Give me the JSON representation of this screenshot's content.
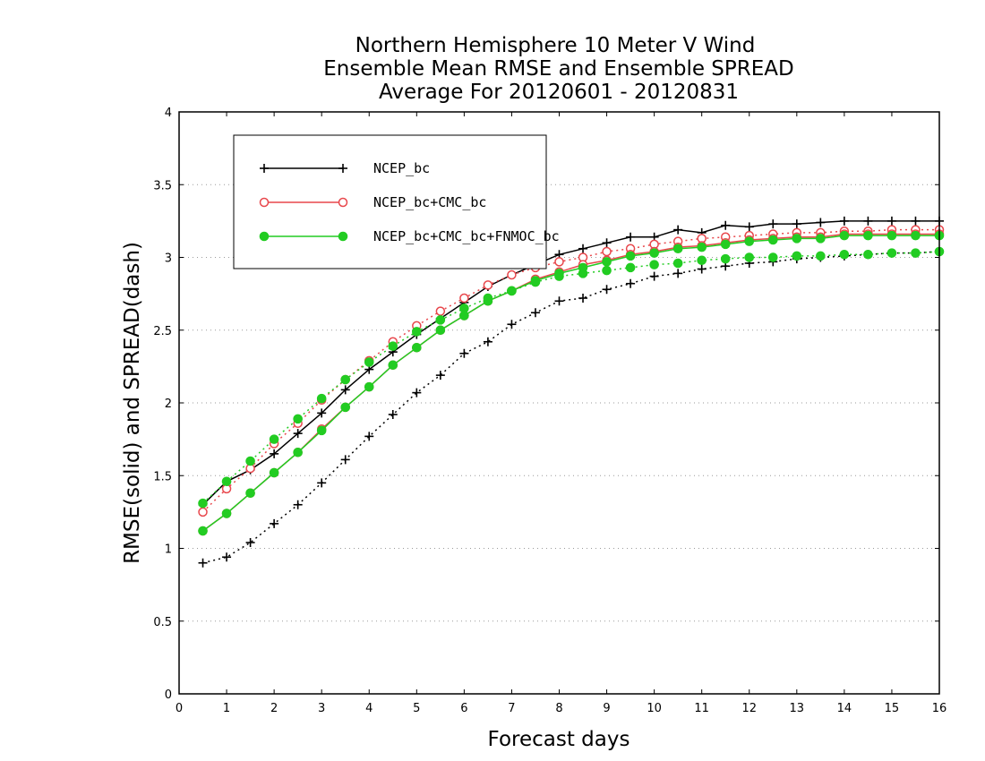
{
  "chart_data": {
    "type": "line",
    "title": [
      "Northern Hemisphere 10 Meter V Wind",
      "Ensemble Mean RMSE and Ensemble SPREAD",
      "Average For 20120601 - 20120831"
    ],
    "xlabel": "Forecast days",
    "ylabel": "RMSE(solid) and SPREAD(dash)",
    "xlim": [
      0,
      16
    ],
    "ylim": [
      0,
      4
    ],
    "xticks": [
      "0",
      "1",
      "2",
      "3",
      "4",
      "5",
      "6",
      "7",
      "8",
      "9",
      "10",
      "11",
      "12",
      "13",
      "14",
      "15",
      "16"
    ],
    "yticks": [
      "0",
      "0.5",
      "1",
      "1.5",
      "2",
      "2.5",
      "3",
      "3.5",
      "4"
    ],
    "grid": "horizontal dotted",
    "legend_position": "top-left",
    "x": [
      0.5,
      1,
      1.5,
      2,
      2.5,
      3,
      3.5,
      4,
      4.5,
      5,
      5.5,
      6,
      6.5,
      7,
      7.5,
      8,
      8.5,
      9,
      9.5,
      10,
      10.5,
      11,
      11.5,
      12,
      12.5,
      13,
      13.5,
      14,
      14.5,
      15,
      15.5,
      16
    ],
    "series": [
      {
        "name": "NCEP_bc",
        "color": "#000000",
        "marker": "plus",
        "rmse": [
          1.3,
          1.46,
          1.54,
          1.65,
          1.79,
          1.93,
          2.09,
          2.23,
          2.35,
          2.47,
          2.58,
          2.69,
          2.8,
          2.88,
          2.95,
          3.02,
          3.06,
          3.1,
          3.14,
          3.14,
          3.19,
          3.17,
          3.22,
          3.21,
          3.23,
          3.23,
          3.24,
          3.25,
          3.25,
          3.25,
          3.25,
          3.25
        ],
        "spread": [
          0.9,
          0.94,
          1.04,
          1.17,
          1.3,
          1.45,
          1.61,
          1.77,
          1.92,
          2.07,
          2.19,
          2.34,
          2.42,
          2.54,
          2.62,
          2.7,
          2.72,
          2.78,
          2.82,
          2.87,
          2.89,
          2.92,
          2.94,
          2.96,
          2.97,
          2.99,
          3.0,
          3.01,
          3.02,
          3.03,
          3.03,
          3.04
        ]
      },
      {
        "name": "NCEP_bc+CMC_bc",
        "color": "#e8474c",
        "marker": "circle-open",
        "rmse": [
          1.12,
          1.24,
          1.38,
          1.52,
          1.66,
          1.82,
          1.97,
          2.11,
          2.26,
          2.38,
          2.5,
          2.6,
          2.7,
          2.77,
          2.85,
          2.9,
          2.95,
          2.98,
          3.02,
          3.04,
          3.07,
          3.08,
          3.1,
          3.12,
          3.13,
          3.14,
          3.14,
          3.16,
          3.16,
          3.16,
          3.16,
          3.16
        ],
        "spread": [
          1.25,
          1.41,
          1.55,
          1.72,
          1.86,
          2.02,
          2.16,
          2.29,
          2.42,
          2.53,
          2.63,
          2.72,
          2.81,
          2.88,
          2.93,
          2.97,
          3.0,
          3.04,
          3.06,
          3.09,
          3.11,
          3.13,
          3.14,
          3.15,
          3.16,
          3.17,
          3.17,
          3.18,
          3.18,
          3.19,
          3.19,
          3.19
        ]
      },
      {
        "name": "NCEP_bc+CMC_bc+FNMOC_bc",
        "color": "#22cc22",
        "marker": "circle-filled",
        "rmse": [
          1.12,
          1.24,
          1.38,
          1.52,
          1.66,
          1.81,
          1.97,
          2.11,
          2.26,
          2.38,
          2.5,
          2.6,
          2.7,
          2.77,
          2.84,
          2.89,
          2.93,
          2.97,
          3.01,
          3.03,
          3.06,
          3.07,
          3.09,
          3.11,
          3.12,
          3.13,
          3.13,
          3.15,
          3.15,
          3.15,
          3.15,
          3.15
        ],
        "spread": [
          1.31,
          1.46,
          1.6,
          1.75,
          1.89,
          2.03,
          2.16,
          2.28,
          2.39,
          2.49,
          2.57,
          2.65,
          2.72,
          2.77,
          2.83,
          2.87,
          2.89,
          2.91,
          2.93,
          2.95,
          2.96,
          2.98,
          2.99,
          3.0,
          3.0,
          3.01,
          3.01,
          3.02,
          3.02,
          3.03,
          3.03,
          3.04
        ]
      }
    ]
  }
}
